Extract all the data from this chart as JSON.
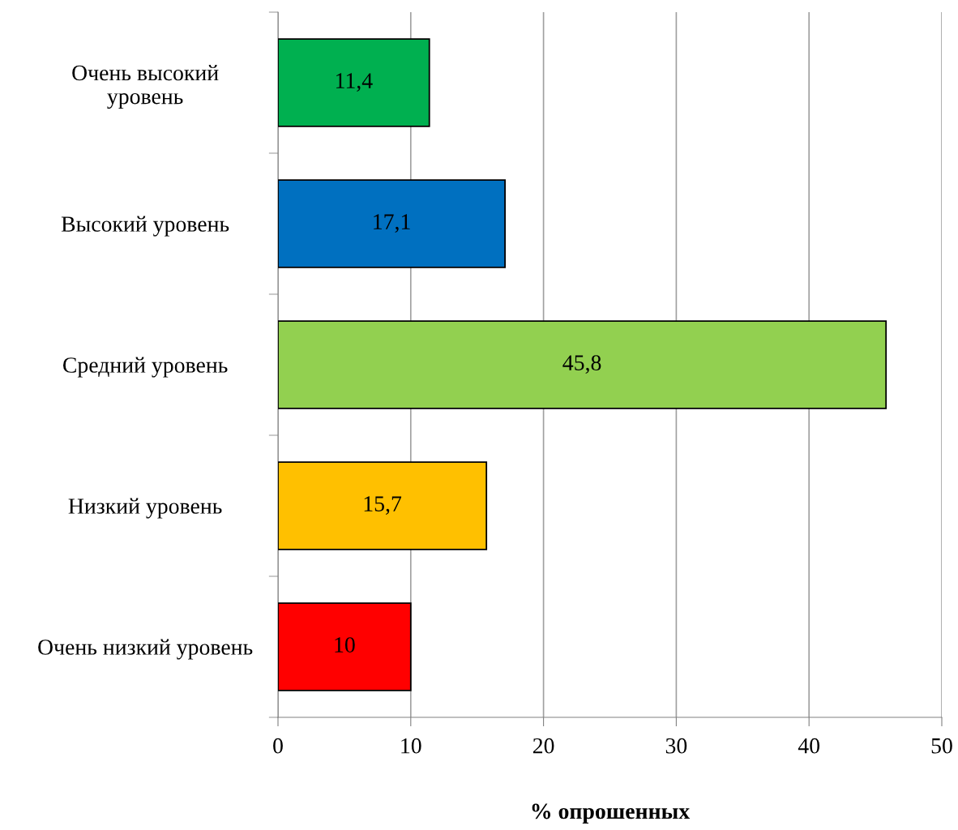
{
  "chart_data": {
    "type": "bar",
    "orientation": "horizontal",
    "xlabel": "% опрошенных",
    "categories": [
      "Очень высокий\nуровень",
      "Высокий уровень",
      "Средний уровень",
      "Низкий уровень",
      "Очень низкий уровень"
    ],
    "values": [
      11.4,
      17.1,
      45.8,
      15.7,
      10
    ],
    "colors": [
      "#00b050",
      "#0070c0",
      "#92d050",
      "#ffc000",
      "#ff0000"
    ],
    "value_labels": [
      "11,4",
      "17,1",
      "45,8",
      "15,7",
      "10"
    ],
    "xlim": [
      0,
      50
    ],
    "xticks": [
      0,
      10,
      20,
      30,
      40,
      50
    ],
    "grid": "x"
  }
}
